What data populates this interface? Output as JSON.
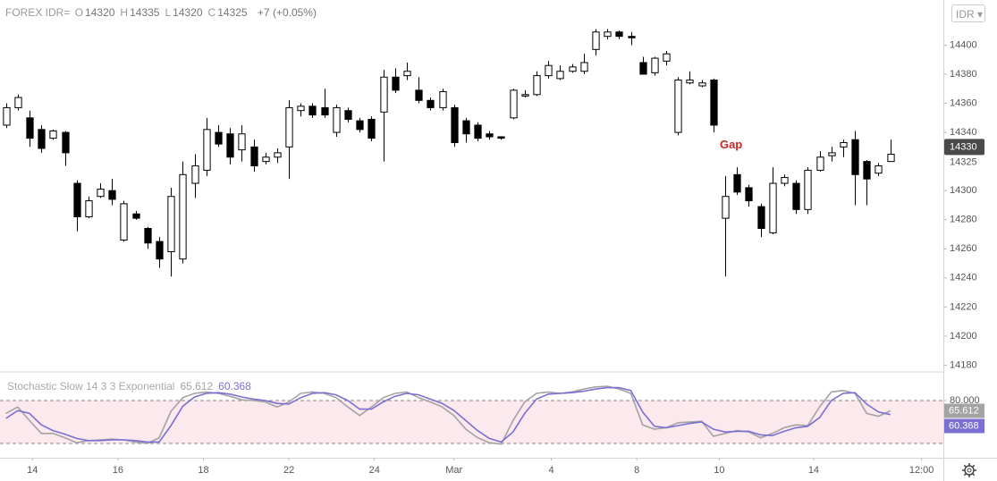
{
  "chart_data": [
    {
      "type": "candlestick",
      "title": "FOREX IDR=",
      "ohlc": [
        {
          "label": "O",
          "value": 14320
        },
        {
          "label": "H",
          "value": 14335
        },
        {
          "label": "L",
          "value": 14320
        },
        {
          "label": "C",
          "value": 14325
        }
      ],
      "change": "+7 (+0.05%)",
      "currency": "IDR",
      "up_color": "#ffffff",
      "down_color": "#000000",
      "x": [
        1,
        3,
        5,
        7,
        9,
        11,
        13,
        15,
        17,
        19,
        21,
        23,
        25,
        27,
        29,
        31,
        33,
        35,
        37,
        39,
        41,
        43,
        45,
        47,
        49,
        51,
        53,
        55,
        57,
        59,
        61,
        63,
        65,
        67,
        69,
        71,
        73,
        75,
        77,
        79,
        81,
        83,
        85,
        87,
        89,
        91,
        93,
        95,
        97,
        99,
        101,
        103,
        105,
        107,
        109,
        111,
        113,
        115,
        117,
        119,
        121,
        123,
        125,
        127,
        129,
        131,
        133,
        135,
        137,
        139,
        141,
        143,
        145,
        147,
        149,
        151
      ],
      "open": [
        14345,
        14357,
        14350,
        14342,
        14336,
        14340,
        14305,
        14282,
        14296,
        14300,
        14266,
        14284,
        14274,
        14265,
        14258,
        14253,
        14305,
        14314,
        14340,
        14339,
        14328,
        14330,
        14320,
        14323,
        14330,
        14355,
        14358,
        14357,
        14340,
        14355,
        14348,
        14349,
        14354,
        14378,
        14379,
        14369,
        14362,
        14357,
        14357,
        14348,
        14345,
        14339,
        14337,
        14350,
        14365,
        14366,
        14379,
        14377,
        14382,
        14382,
        14397,
        14406,
        14409,
        14406,
        14388,
        14381,
        14389,
        14340,
        14374,
        14372,
        14376,
        14281,
        14311,
        14302,
        14289,
        14271,
        14305,
        14305,
        14287,
        14314,
        14324,
        14330,
        14335,
        14320,
        14312,
        14320
      ],
      "high": [
        14360,
        14366,
        14355,
        14345,
        14342,
        14341,
        14307,
        14296,
        14305,
        14308,
        14293,
        14286,
        14275,
        14268,
        14302,
        14320,
        14325,
        14350,
        14345,
        14343,
        14345,
        14335,
        14326,
        14329,
        14362,
        14360,
        14360,
        14370,
        14359,
        14357,
        14350,
        14351,
        14383,
        14384,
        14388,
        14378,
        14364,
        14370,
        14359,
        14350,
        14347,
        14341,
        14337,
        14370,
        14369,
        14382,
        14389,
        14386,
        14387,
        14394,
        14411,
        14411,
        14410,
        14409,
        14392,
        14392,
        14396,
        14378,
        14382,
        14376,
        14377,
        14310,
        14316,
        14304,
        14291,
        14316,
        14311,
        14307,
        14316,
        14327,
        14330,
        14335,
        14341,
        14321,
        14319,
        14335
      ],
      "low": [
        14343,
        14355,
        14330,
        14326,
        14335,
        14317,
        14272,
        14281,
        14295,
        14290,
        14265,
        14280,
        14260,
        14247,
        14241,
        14250,
        14295,
        14310,
        14330,
        14318,
        14320,
        14313,
        14318,
        14319,
        14308,
        14351,
        14350,
        14350,
        14337,
        14347,
        14340,
        14334,
        14320,
        14367,
        14376,
        14360,
        14355,
        14355,
        14330,
        14333,
        14334,
        14335,
        14335,
        14349,
        14364,
        14365,
        14377,
        14376,
        14381,
        14380,
        14393,
        14404,
        14404,
        14400,
        14380,
        14379,
        14386,
        14338,
        14373,
        14371,
        14340,
        14241,
        14297,
        14289,
        14268,
        14270,
        14303,
        14284,
        14284,
        14313,
        14320,
        14323,
        14290,
        14290,
        14310,
        14320
      ],
      "close": [
        14357,
        14364,
        14336,
        14329,
        14341,
        14326,
        14282,
        14293,
        14301,
        14294,
        14291,
        14281,
        14264,
        14253,
        14296,
        14311,
        14317,
        14342,
        14332,
        14323,
        14339,
        14317,
        14323,
        14326,
        14357,
        14358,
        14352,
        14352,
        14357,
        14349,
        14342,
        14336,
        14378,
        14369,
        14382,
        14362,
        14357,
        14368,
        14333,
        14339,
        14336,
        14337,
        14336,
        14369,
        14366,
        14379,
        14386,
        14382,
        14385,
        14388,
        14409,
        14409,
        14406,
        14405,
        14380,
        14391,
        14394,
        14376,
        14376,
        14374,
        14345,
        14296,
        14299,
        14293,
        14274,
        14305,
        14309,
        14287,
        14314,
        14323,
        14326,
        14333,
        14311,
        14308,
        14317,
        14325
      ],
      "xlim": [
        0,
        160
      ],
      "ylim": [
        14176,
        14431
      ],
      "yticks": [
        14180,
        14200,
        14220,
        14240,
        14260,
        14280,
        14300,
        14340,
        14360,
        14380,
        14400
      ],
      "last_price": 14330,
      "close_label": 14325,
      "annotations": [
        {
          "text": "Gap",
          "x": 124,
          "y": 14331,
          "color": "#c62828"
        }
      ]
    },
    {
      "type": "line",
      "title": "Stochastic Slow 14 3 3 Exponential",
      "x": [
        1,
        3,
        5,
        7,
        9,
        11,
        13,
        15,
        17,
        19,
        21,
        23,
        25,
        27,
        29,
        31,
        33,
        35,
        37,
        39,
        41,
        43,
        45,
        47,
        49,
        51,
        53,
        55,
        57,
        59,
        61,
        63,
        65,
        67,
        69,
        71,
        73,
        75,
        77,
        79,
        81,
        83,
        85,
        87,
        89,
        91,
        93,
        95,
        97,
        99,
        101,
        103,
        105,
        107,
        109,
        111,
        113,
        115,
        117,
        119,
        121,
        123,
        125,
        127,
        129,
        131,
        133,
        135,
        137,
        139,
        141,
        143,
        145,
        147,
        149,
        151
      ],
      "series": [
        {
          "color": "#a3a3a3",
          "values": [
            62,
            71,
            52,
            34,
            34,
            28,
            21,
            24,
            25,
            26,
            25,
            22,
            20,
            28,
            65,
            84,
            90,
            92,
            90,
            86,
            81,
            80,
            78,
            71,
            78,
            90,
            92,
            90,
            84,
            71,
            59,
            71,
            84,
            90,
            92,
            84,
            78,
            71,
            59,
            40,
            28,
            21,
            19,
            52,
            78,
            90,
            92,
            90,
            92,
            96,
            99,
            100,
            96,
            90,
            46,
            40,
            42,
            49,
            50,
            51,
            30,
            34,
            38,
            36,
            28,
            34,
            42,
            46,
            45,
            71,
            92,
            94,
            90,
            62,
            58,
            65.612
          ]
        },
        {
          "color": "#7b6fd4",
          "values": [
            55,
            66,
            62,
            46,
            38,
            33,
            27,
            24,
            24,
            25,
            25,
            24,
            22,
            22,
            45,
            72,
            85,
            90,
            91,
            89,
            85,
            82,
            80,
            76,
            75,
            84,
            90,
            91,
            88,
            80,
            68,
            68,
            78,
            86,
            90,
            88,
            82,
            76,
            66,
            52,
            38,
            27,
            22,
            36,
            62,
            82,
            89,
            90,
            91,
            93,
            96,
            98,
            98,
            94,
            64,
            44,
            42,
            45,
            48,
            50,
            40,
            36,
            37,
            37,
            32,
            31,
            37,
            42,
            44,
            56,
            80,
            90,
            91,
            75,
            64,
            60.368
          ]
        }
      ],
      "xlim": [
        0,
        160
      ],
      "ylim": [
        0,
        117.5
      ],
      "yticks": [
        {
          "value": 80,
          "label": "80.000"
        }
      ],
      "bands": [
        20,
        80
      ],
      "band_color": "#fbe9ee",
      "xticks": [
        {
          "value": 5.5,
          "label": "14"
        },
        {
          "value": 20,
          "label": "16"
        },
        {
          "value": 34.5,
          "label": "18"
        },
        {
          "value": 49,
          "label": "22"
        },
        {
          "value": 63.5,
          "label": "24"
        },
        {
          "value": 77,
          "label": "Mar"
        },
        {
          "value": 93.5,
          "label": "4"
        },
        {
          "value": 108,
          "label": "8"
        },
        {
          "value": 122,
          "label": "10"
        },
        {
          "value": 138,
          "label": "14"
        },
        {
          "value": 156.3,
          "label": "12:00"
        }
      ]
    }
  ]
}
